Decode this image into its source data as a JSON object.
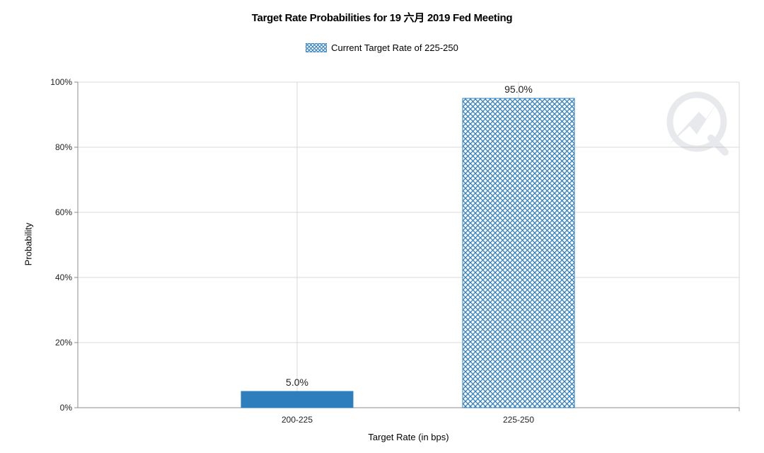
{
  "chart_data": {
    "type": "bar",
    "title": "Target Rate Probabilities for 19 六月 2019 Fed Meeting",
    "legend": "Current Target Rate of 225-250",
    "legend_position": "top-center",
    "xlabel": "Target Rate (in bps)",
    "ylabel": "Probability",
    "categories": [
      "200-225",
      "225-250"
    ],
    "values": [
      5.0,
      95.0
    ],
    "data_labels": [
      "5.0%",
      "95.0%"
    ],
    "current_rate_category": "225-250",
    "ylim": [
      0,
      100
    ],
    "yticks": [
      "0%",
      "20%",
      "40%",
      "60%",
      "80%",
      "100%"
    ],
    "grid": true,
    "colors": {
      "bar": "#2e7dbd",
      "hatch_bg": "#ffffff",
      "grid": "#d9d9d9",
      "axis": "#8c8c8c"
    }
  }
}
